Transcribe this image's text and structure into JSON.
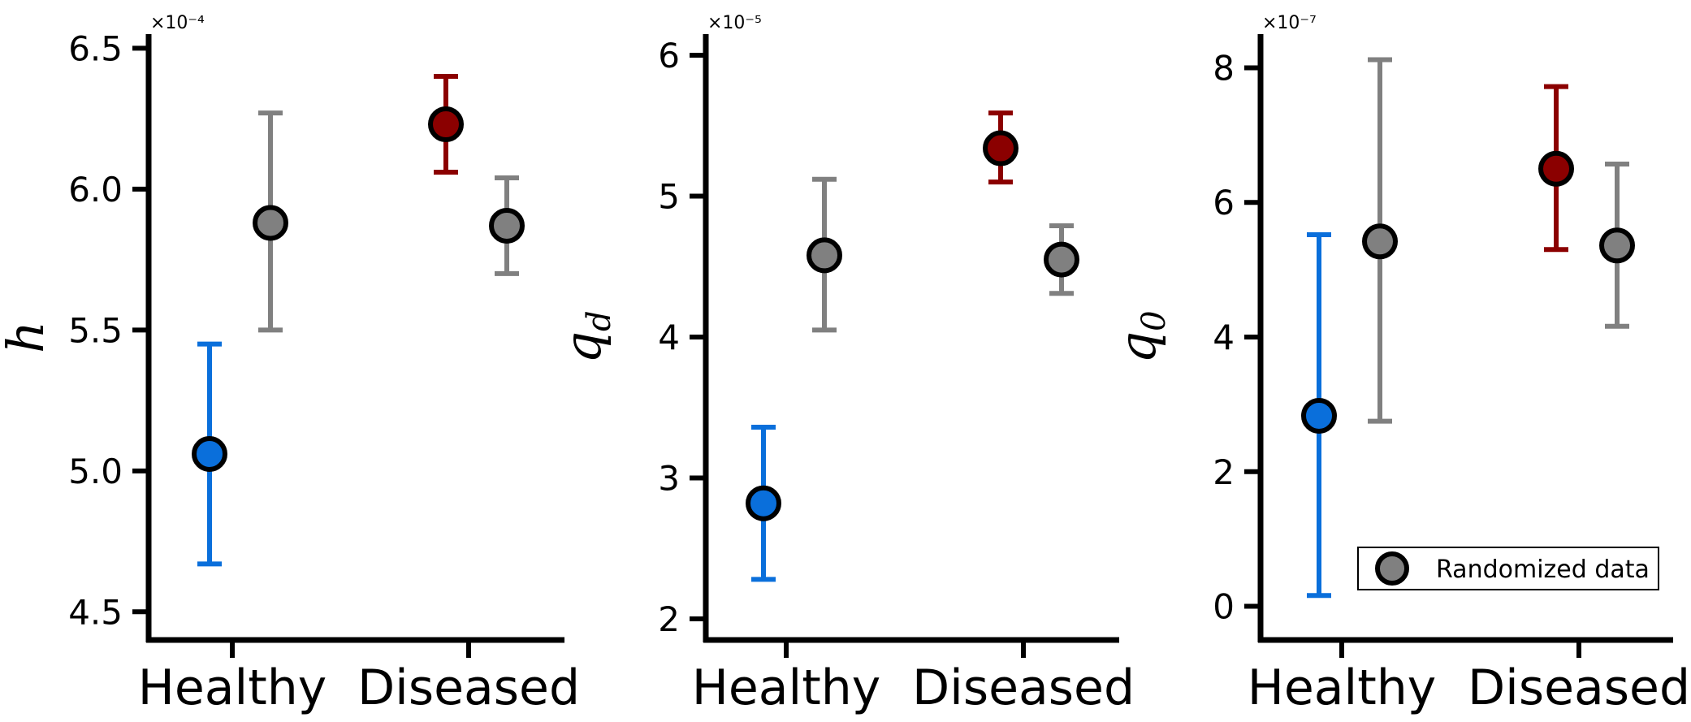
{
  "colors": {
    "healthy": "#0a6fdb",
    "diseased": "#8b0000",
    "randomized": "#808080",
    "axis": "#000000"
  },
  "legend": {
    "label": "Randomized data",
    "placement": "lower-right of third panel"
  },
  "chart_data": [
    {
      "type": "scatter",
      "ylabel": "h",
      "multiplier": "×10⁻⁴",
      "categories": [
        "Healthy",
        "Diseased"
      ],
      "ylim": [
        4.4,
        6.55
      ],
      "yticks": [
        4.5,
        5.0,
        5.5,
        6.0,
        6.5
      ],
      "ytick_labels": [
        "4.5",
        "5.0",
        "5.5",
        "6.0",
        "6.5"
      ],
      "series": [
        {
          "key": "observed",
          "points": [
            {
              "category": "Healthy",
              "value": 5.06,
              "low": 4.67,
              "high": 5.45,
              "color_key": "healthy"
            },
            {
              "category": "Diseased",
              "value": 6.23,
              "low": 6.06,
              "high": 6.4,
              "color_key": "diseased"
            }
          ]
        },
        {
          "key": "randomized",
          "name": "Randomized data",
          "points": [
            {
              "category": "Healthy",
              "value": 5.88,
              "low": 5.5,
              "high": 6.27,
              "color_key": "randomized"
            },
            {
              "category": "Diseased",
              "value": 5.87,
              "low": 5.7,
              "high": 6.04,
              "color_key": "randomized"
            }
          ]
        }
      ]
    },
    {
      "type": "scatter",
      "ylabel": "q",
      "ylabel_sub": "d",
      "multiplier": "×10⁻⁵",
      "categories": [
        "Healthy",
        "Diseased"
      ],
      "ylim": [
        1.85,
        6.15
      ],
      "yticks": [
        2,
        3,
        4,
        5,
        6
      ],
      "ytick_labels": [
        "2",
        "3",
        "4",
        "5",
        "6"
      ],
      "series": [
        {
          "key": "observed",
          "points": [
            {
              "category": "Healthy",
              "value": 2.82,
              "low": 2.28,
              "high": 3.36,
              "color_key": "healthy"
            },
            {
              "category": "Diseased",
              "value": 5.34,
              "low": 5.1,
              "high": 5.59,
              "color_key": "diseased"
            }
          ]
        },
        {
          "key": "randomized",
          "name": "Randomized data",
          "points": [
            {
              "category": "Healthy",
              "value": 4.58,
              "low": 4.05,
              "high": 5.12,
              "color_key": "randomized"
            },
            {
              "category": "Diseased",
              "value": 4.55,
              "low": 4.31,
              "high": 4.79,
              "color_key": "randomized"
            }
          ]
        }
      ]
    },
    {
      "type": "scatter",
      "ylabel": "q",
      "ylabel_sub": "0",
      "multiplier": "×10⁻⁷",
      "categories": [
        "Healthy",
        "Diseased"
      ],
      "ylim": [
        -0.5,
        8.5
      ],
      "yticks": [
        0,
        2,
        4,
        6,
        8
      ],
      "ytick_labels": [
        "0",
        "2",
        "4",
        "6",
        "8"
      ],
      "series": [
        {
          "key": "observed",
          "points": [
            {
              "category": "Healthy",
              "value": 2.83,
              "low": 0.16,
              "high": 5.52,
              "color_key": "healthy"
            },
            {
              "category": "Diseased",
              "value": 6.5,
              "low": 5.3,
              "high": 7.72,
              "color_key": "diseased"
            }
          ]
        },
        {
          "key": "randomized",
          "name": "Randomized data",
          "points": [
            {
              "category": "Healthy",
              "value": 5.42,
              "low": 2.75,
              "high": 8.12,
              "color_key": "randomized"
            },
            {
              "category": "Diseased",
              "value": 5.36,
              "low": 4.16,
              "high": 6.57,
              "color_key": "randomized"
            }
          ]
        }
      ]
    }
  ]
}
